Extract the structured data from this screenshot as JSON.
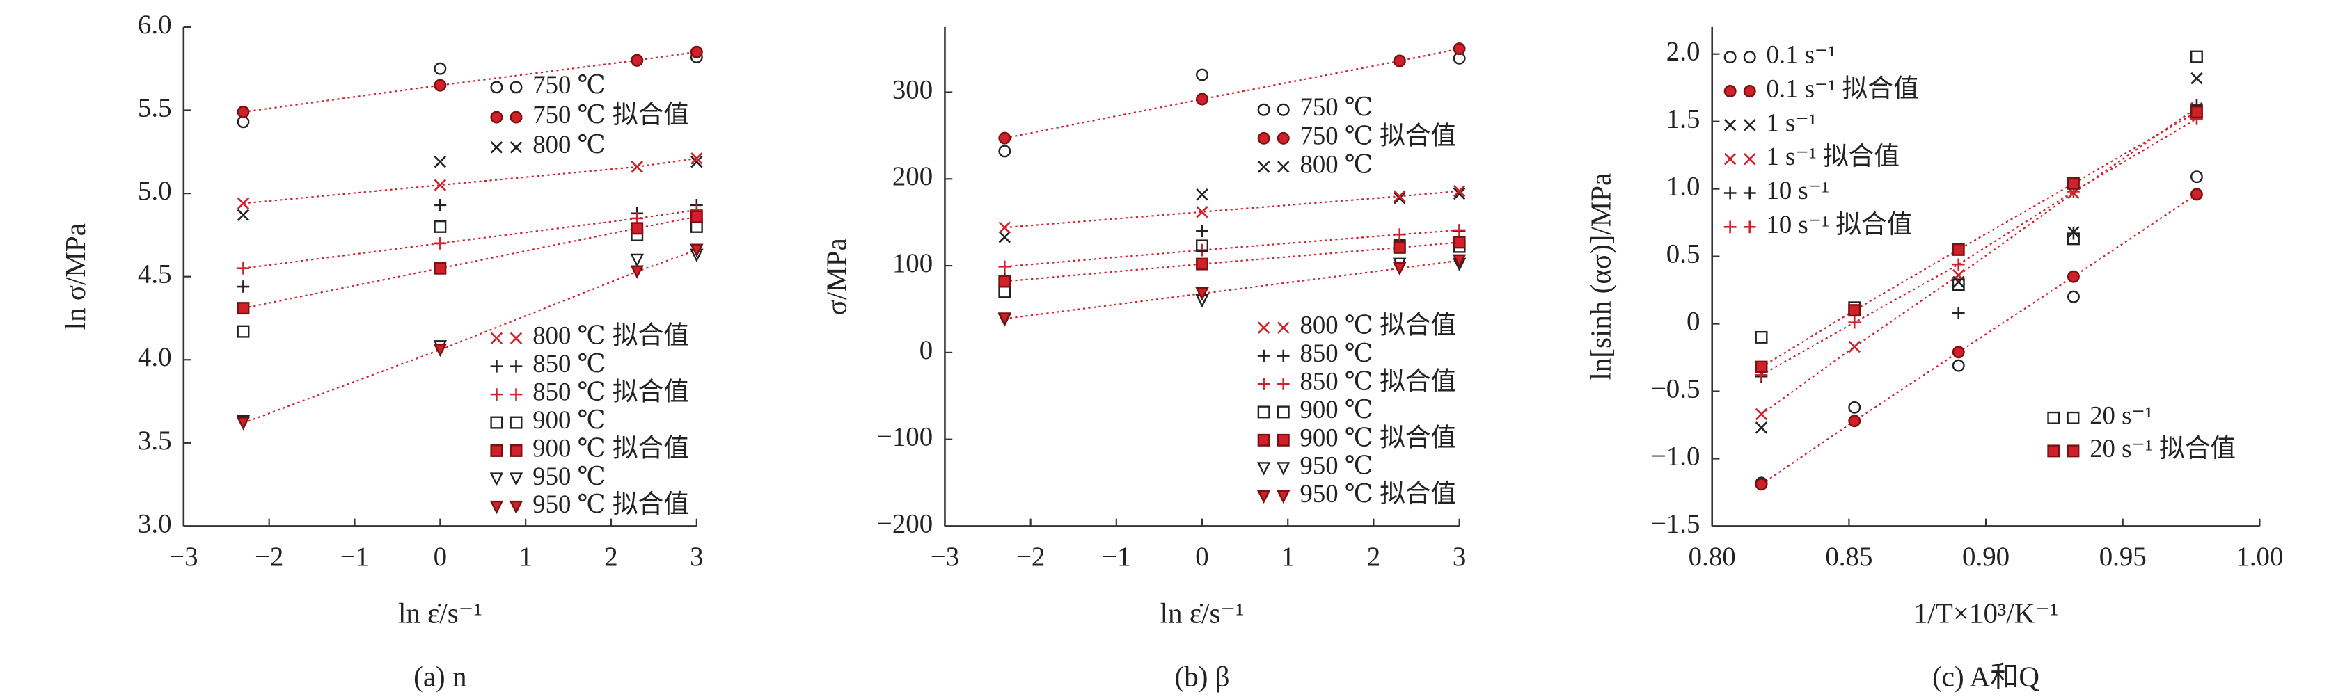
{
  "chart_data": [
    {
      "type": "scatter",
      "caption": "(a) n",
      "x_label": "ln ε̇/s⁻¹",
      "y_label": "ln σ/MPa",
      "xlim": [
        -3,
        3
      ],
      "ylim": [
        3,
        6
      ],
      "xticks": [
        {
          "value": -3,
          "label": "−3"
        },
        {
          "value": -2,
          "label": "−2"
        },
        {
          "value": -1,
          "label": "−1"
        },
        0,
        1,
        2,
        3
      ],
      "yticks": [
        {
          "value": 3,
          "label": "3.0"
        },
        3.5,
        {
          "value": 4,
          "label": "4.0"
        },
        4.5,
        {
          "value": 5,
          "label": "5.0"
        },
        5.5,
        {
          "value": 6,
          "label": "6.0"
        }
      ],
      "x": [
        -2.303,
        0,
        2.303,
        3.0
      ],
      "series": [
        {
          "name": "750 ℃",
          "color": "#222222",
          "marker": "circle",
          "filled": false,
          "fit": false,
          "values": [
            5.43,
            5.75,
            5.8,
            5.82
          ]
        },
        {
          "name": "750 ℃ 拟合值",
          "color": "#d0202a",
          "marker": "circle",
          "filled": true,
          "fit": true,
          "values": [
            5.49,
            5.65,
            5.8,
            5.85
          ]
        },
        {
          "name": "800 ℃",
          "color": "#222222",
          "marker": "x",
          "filled": false,
          "fit": false,
          "values": [
            4.87,
            5.19,
            5.16,
            5.19
          ]
        },
        {
          "name": "800 ℃ 拟合值",
          "color": "#d0202a",
          "marker": "x",
          "filled": true,
          "fit": true,
          "values": [
            4.94,
            5.05,
            5.16,
            5.21
          ]
        },
        {
          "name": "850 ℃",
          "color": "#222222",
          "marker": "plus",
          "filled": false,
          "fit": false,
          "values": [
            4.44,
            4.93,
            4.88,
            4.93
          ]
        },
        {
          "name": "850 ℃ 拟合值",
          "color": "#d0202a",
          "marker": "plus",
          "filled": true,
          "fit": true,
          "values": [
            4.55,
            4.7,
            4.85,
            4.9
          ]
        },
        {
          "name": "900 ℃",
          "color": "#222222",
          "marker": "square",
          "filled": false,
          "fit": false,
          "values": [
            4.17,
            4.8,
            4.75,
            4.8
          ]
        },
        {
          "name": "900 ℃ 拟合值",
          "color": "#d0202a",
          "marker": "square",
          "filled": true,
          "fit": true,
          "values": [
            4.31,
            4.55,
            4.79,
            4.86
          ]
        },
        {
          "name": "950 ℃",
          "color": "#222222",
          "marker": "triangle",
          "filled": false,
          "fit": false,
          "values": [
            3.63,
            4.08,
            4.6,
            4.63
          ]
        },
        {
          "name": "950 ℃ 拟合值",
          "color": "#d0202a",
          "marker": "triangle",
          "filled": true,
          "fit": true,
          "values": [
            3.62,
            4.06,
            4.53,
            4.66
          ]
        }
      ]
    },
    {
      "type": "scatter",
      "caption": "(b) β",
      "x_label": "ln ε̇/s⁻¹",
      "y_label": "σ/MPa",
      "xlim": [
        -3,
        3
      ],
      "ylim": [
        -200,
        375
      ],
      "xticks": [
        {
          "value": -3,
          "label": "−3"
        },
        {
          "value": -2,
          "label": "−2"
        },
        {
          "value": -1,
          "label": "−1"
        },
        0,
        1,
        2,
        3
      ],
      "yticks": [
        {
          "value": -200,
          "label": "−200"
        },
        {
          "value": -100,
          "label": "−100"
        },
        0,
        100,
        200,
        300
      ],
      "x": [
        -2.303,
        0,
        2.303,
        3.0
      ],
      "series": [
        {
          "name": "750 ℃",
          "color": "#222222",
          "marker": "circle",
          "filled": false,
          "fit": false,
          "values": [
            232,
            320,
            336,
            339
          ]
        },
        {
          "name": "750 ℃ 拟合值",
          "color": "#d0202a",
          "marker": "circle",
          "filled": true,
          "fit": true,
          "values": [
            247,
            292,
            336,
            350
          ]
        },
        {
          "name": "800 ℃",
          "color": "#222222",
          "marker": "x",
          "filled": false,
          "fit": false,
          "values": [
            133,
            182,
            178,
            183
          ]
        },
        {
          "name": "800 ℃ 拟合值",
          "color": "#d0202a",
          "marker": "x",
          "filled": true,
          "fit": true,
          "values": [
            144,
            162,
            180,
            186
          ]
        },
        {
          "name": "850 ℃",
          "color": "#222222",
          "marker": "plus",
          "filled": false,
          "fit": false,
          "values": [
            85,
            140,
            130,
            140
          ]
        },
        {
          "name": "850 ℃ 拟合值",
          "color": "#d0202a",
          "marker": "plus",
          "filled": true,
          "fit": true,
          "values": [
            99,
            118,
            136,
            141
          ]
        },
        {
          "name": "900 ℃",
          "color": "#222222",
          "marker": "square",
          "filled": false,
          "fit": false,
          "values": [
            70,
            123,
            122,
            122
          ]
        },
        {
          "name": "900 ℃ 拟合值",
          "color": "#d0202a",
          "marker": "square",
          "filled": true,
          "fit": true,
          "values": [
            82,
            102,
            121,
            127
          ]
        },
        {
          "name": "950 ℃",
          "color": "#222222",
          "marker": "triangle",
          "filled": false,
          "fit": false,
          "values": [
            38,
            60,
            102,
            102
          ]
        },
        {
          "name": "950 ℃ 拟合值",
          "color": "#d0202a",
          "marker": "triangle",
          "filled": true,
          "fit": true,
          "values": [
            39,
            68,
            97,
            106
          ]
        }
      ]
    },
    {
      "type": "scatter",
      "caption": "(c) A和Q",
      "x_label": "1/T×10³/K⁻¹",
      "y_label": "ln[sinh (ασ)]/MPa",
      "xlim": [
        0.8,
        1.0
      ],
      "ylim": [
        -1.5,
        2.2
      ],
      "xticks": [
        {
          "value": 0.8,
          "label": "0.80"
        },
        0.85,
        {
          "value": 0.9,
          "label": "0.90"
        },
        0.95,
        {
          "value": 1.0,
          "label": "1.00"
        }
      ],
      "yticks": [
        {
          "value": -1.5,
          "label": "−1.5"
        },
        {
          "value": -1,
          "label": "−1.0"
        },
        {
          "value": -0.5,
          "label": "−0.5"
        },
        0,
        0.5,
        {
          "value": 1,
          "label": "1.0"
        },
        1.5,
        {
          "value": 2,
          "label": "2.0"
        }
      ],
      "x": [
        0.818,
        0.852,
        0.89,
        0.932,
        0.977
      ],
      "series": [
        {
          "name": "0.1 s⁻¹",
          "color": "#222222",
          "marker": "circle",
          "filled": false,
          "fit": false,
          "values": [
            -1.18,
            -0.62,
            -0.31,
            0.2,
            1.09
          ]
        },
        {
          "name": "0.1 s⁻¹ 拟合值",
          "color": "#d0202a",
          "marker": "circle",
          "filled": true,
          "fit": true,
          "values": [
            -1.19,
            -0.72,
            -0.21,
            0.35,
            0.96
          ]
        },
        {
          "name": "1 s⁻¹",
          "color": "#222222",
          "marker": "x",
          "filled": false,
          "fit": false,
          "values": [
            -0.77,
            0.1,
            0.31,
            0.68,
            1.82
          ]
        },
        {
          "name": "1 s⁻¹ 拟合值",
          "color": "#d0202a",
          "marker": "x",
          "filled": true,
          "fit": true,
          "values": [
            -0.67,
            -0.17,
            0.36,
            0.97,
            1.6
          ]
        },
        {
          "name": "10 s⁻¹",
          "color": "#222222",
          "marker": "plus",
          "filled": false,
          "fit": false,
          "values": [
            -0.39,
            0.07,
            0.08,
            0.67,
            1.62
          ]
        },
        {
          "name": "10 s⁻¹ 拟合值",
          "color": "#d0202a",
          "marker": "plus",
          "filled": true,
          "fit": true,
          "values": [
            -0.38,
            0.01,
            0.44,
            0.98,
            1.52
          ]
        },
        {
          "name": "20 s⁻¹",
          "color": "#222222",
          "marker": "square",
          "filled": false,
          "fit": false,
          "values": [
            -0.1,
            0.12,
            0.29,
            0.63,
            1.98
          ]
        },
        {
          "name": "20 s⁻¹ 拟合值",
          "color": "#d0202a",
          "marker": "square",
          "filled": true,
          "fit": true,
          "values": [
            -0.32,
            0.1,
            0.55,
            1.04,
            1.57
          ]
        }
      ]
    }
  ]
}
